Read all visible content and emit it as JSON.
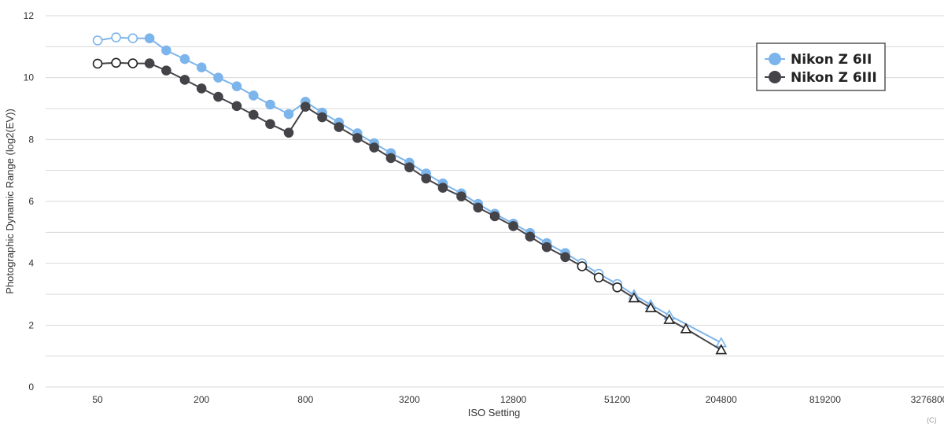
{
  "chart_data": {
    "type": "line",
    "title": "",
    "xlabel": "ISO Setting",
    "ylabel": "Photographic Dynamic Range (log2(EV))",
    "x_scale": "log2",
    "xlim": [
      25,
      4000000
    ],
    "ylim": [
      0,
      12
    ],
    "grid": true,
    "legend_position": "top-right",
    "x_tick_labels": [
      "50",
      "200",
      "800",
      "3200",
      "12800",
      "51200",
      "204800",
      "819200",
      "3276800"
    ],
    "y_tick_labels": [
      "0",
      "2",
      "4",
      "6",
      "8",
      "10",
      "12"
    ],
    "series": [
      {
        "name": "Nikon Z 6II",
        "color": "#7cb5ec",
        "points": [
          {
            "iso": 50,
            "dr": 11.2,
            "marker": "circle-open"
          },
          {
            "iso": 64,
            "dr": 11.3,
            "marker": "circle-open"
          },
          {
            "iso": 80,
            "dr": 11.27,
            "marker": "circle-open"
          },
          {
            "iso": 100,
            "dr": 11.27,
            "marker": "circle"
          },
          {
            "iso": 125,
            "dr": 10.88,
            "marker": "circle"
          },
          {
            "iso": 160,
            "dr": 10.6,
            "marker": "circle"
          },
          {
            "iso": 200,
            "dr": 10.33,
            "marker": "circle"
          },
          {
            "iso": 250,
            "dr": 10.0,
            "marker": "circle"
          },
          {
            "iso": 320,
            "dr": 9.72,
            "marker": "circle"
          },
          {
            "iso": 400,
            "dr": 9.42,
            "marker": "circle"
          },
          {
            "iso": 500,
            "dr": 9.13,
            "marker": "circle"
          },
          {
            "iso": 640,
            "dr": 8.82,
            "marker": "circle"
          },
          {
            "iso": 800,
            "dr": 9.22,
            "marker": "circle"
          },
          {
            "iso": 1000,
            "dr": 8.87,
            "marker": "circle"
          },
          {
            "iso": 1250,
            "dr": 8.55,
            "marker": "circle"
          },
          {
            "iso": 1600,
            "dr": 8.2,
            "marker": "circle"
          },
          {
            "iso": 2000,
            "dr": 7.88,
            "marker": "circle"
          },
          {
            "iso": 2500,
            "dr": 7.56,
            "marker": "circle"
          },
          {
            "iso": 3200,
            "dr": 7.25,
            "marker": "circle"
          },
          {
            "iso": 4000,
            "dr": 6.9,
            "marker": "circle"
          },
          {
            "iso": 5000,
            "dr": 6.58,
            "marker": "circle"
          },
          {
            "iso": 6400,
            "dr": 6.26,
            "marker": "circle"
          },
          {
            "iso": 8000,
            "dr": 5.92,
            "marker": "circle"
          },
          {
            "iso": 10000,
            "dr": 5.6,
            "marker": "circle"
          },
          {
            "iso": 12800,
            "dr": 5.28,
            "marker": "circle"
          },
          {
            "iso": 16000,
            "dr": 4.98,
            "marker": "circle"
          },
          {
            "iso": 20000,
            "dr": 4.65,
            "marker": "circle"
          },
          {
            "iso": 25600,
            "dr": 4.33,
            "marker": "circle"
          },
          {
            "iso": 32000,
            "dr": 4.0,
            "marker": "circle-open"
          },
          {
            "iso": 40000,
            "dr": 3.66,
            "marker": "circle-open"
          },
          {
            "iso": 51200,
            "dr": 3.33,
            "marker": "circle-open"
          },
          {
            "iso": 64000,
            "dr": 2.98,
            "marker": "triangle-open"
          },
          {
            "iso": 80000,
            "dr": 2.66,
            "marker": "triangle-open"
          },
          {
            "iso": 102400,
            "dr": 2.32,
            "marker": "triangle-open"
          },
          {
            "iso": 204800,
            "dr": 1.43,
            "marker": "triangle-open"
          }
        ]
      },
      {
        "name": "Nikon Z 6III",
        "color": "#434348",
        "points": [
          {
            "iso": 50,
            "dr": 10.45,
            "marker": "circle-open"
          },
          {
            "iso": 64,
            "dr": 10.48,
            "marker": "circle-open"
          },
          {
            "iso": 80,
            "dr": 10.46,
            "marker": "circle-open"
          },
          {
            "iso": 100,
            "dr": 10.46,
            "marker": "circle"
          },
          {
            "iso": 125,
            "dr": 10.23,
            "marker": "circle"
          },
          {
            "iso": 160,
            "dr": 9.93,
            "marker": "circle"
          },
          {
            "iso": 200,
            "dr": 9.65,
            "marker": "circle"
          },
          {
            "iso": 250,
            "dr": 9.38,
            "marker": "circle"
          },
          {
            "iso": 320,
            "dr": 9.08,
            "marker": "circle"
          },
          {
            "iso": 400,
            "dr": 8.8,
            "marker": "circle"
          },
          {
            "iso": 500,
            "dr": 8.5,
            "marker": "circle"
          },
          {
            "iso": 640,
            "dr": 8.22,
            "marker": "circle"
          },
          {
            "iso": 800,
            "dr": 9.06,
            "marker": "circle"
          },
          {
            "iso": 1000,
            "dr": 8.72,
            "marker": "circle"
          },
          {
            "iso": 1250,
            "dr": 8.4,
            "marker": "circle"
          },
          {
            "iso": 1600,
            "dr": 8.05,
            "marker": "circle"
          },
          {
            "iso": 2000,
            "dr": 7.74,
            "marker": "circle"
          },
          {
            "iso": 2500,
            "dr": 7.4,
            "marker": "circle"
          },
          {
            "iso": 3200,
            "dr": 7.1,
            "marker": "circle"
          },
          {
            "iso": 4000,
            "dr": 6.74,
            "marker": "circle"
          },
          {
            "iso": 5000,
            "dr": 6.44,
            "marker": "circle"
          },
          {
            "iso": 6400,
            "dr": 6.16,
            "marker": "circle"
          },
          {
            "iso": 8000,
            "dr": 5.8,
            "marker": "circle"
          },
          {
            "iso": 10000,
            "dr": 5.52,
            "marker": "circle"
          },
          {
            "iso": 12800,
            "dr": 5.2,
            "marker": "circle"
          },
          {
            "iso": 16000,
            "dr": 4.86,
            "marker": "circle"
          },
          {
            "iso": 20000,
            "dr": 4.52,
            "marker": "circle"
          },
          {
            "iso": 25600,
            "dr": 4.2,
            "marker": "circle"
          },
          {
            "iso": 32000,
            "dr": 3.9,
            "marker": "circle-open"
          },
          {
            "iso": 40000,
            "dr": 3.54,
            "marker": "circle-open"
          },
          {
            "iso": 51200,
            "dr": 3.22,
            "marker": "circle-open"
          },
          {
            "iso": 64000,
            "dr": 2.88,
            "marker": "triangle-open"
          },
          {
            "iso": 80000,
            "dr": 2.56,
            "marker": "triangle-open"
          },
          {
            "iso": 102400,
            "dr": 2.18,
            "marker": "triangle-open"
          },
          {
            "iso": 128000,
            "dr": 1.88,
            "marker": "triangle-open"
          },
          {
            "iso": 204800,
            "dr": 1.2,
            "marker": "triangle-open"
          }
        ]
      }
    ]
  },
  "credit": "(C)"
}
